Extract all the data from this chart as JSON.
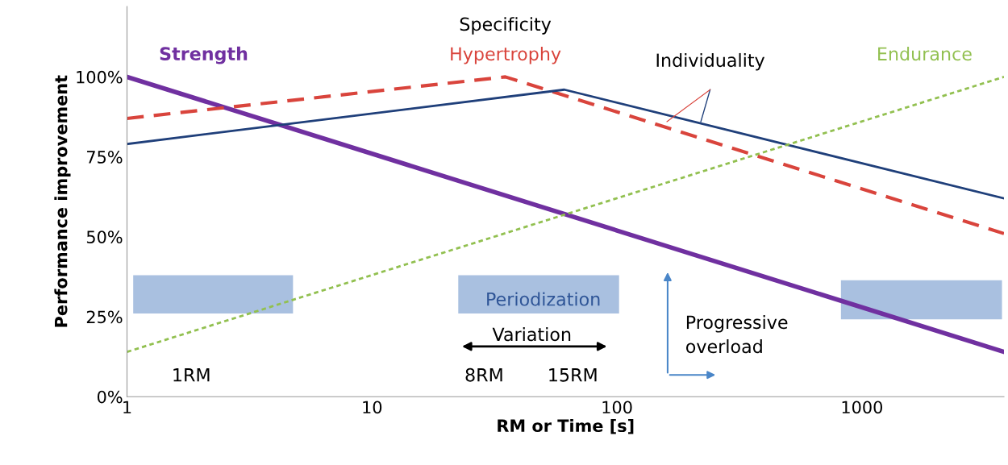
{
  "chart_data": {
    "type": "line",
    "xlabel": "RM or Time [s]",
    "ylabel": "Performance improvement",
    "log": "x",
    "xlim": [
      1,
      3800
    ],
    "xticks": [
      1,
      10,
      100,
      1000
    ],
    "ylim": [
      0,
      122
    ],
    "yticks": [
      {
        "value": 0,
        "label": "0%"
      },
      {
        "value": 25,
        "label": "25%"
      },
      {
        "value": 50,
        "label": "50%"
      },
      {
        "value": 75,
        "label": "75%"
      },
      {
        "value": 100,
        "label": "100%"
      }
    ],
    "grid": false,
    "legend": false,
    "marker": "none",
    "series": [
      {
        "name": "Strength",
        "color": "#7030a0",
        "line_style": "solid",
        "x": [
          1,
          3800
        ],
        "values": [
          100,
          14
        ]
      },
      {
        "name": "Hypertrophy",
        "color": "#d9443c",
        "line_style": "dashed",
        "x": [
          1,
          35,
          3800
        ],
        "values": [
          87,
          100,
          51
        ]
      },
      {
        "name": "Individuality",
        "color": "#1f3f7a",
        "line_style": "solid",
        "x": [
          1,
          61,
          3800
        ],
        "values": [
          79,
          96,
          62
        ]
      },
      {
        "name": "Endurance",
        "color": "#92c050",
        "line_style": "dotted",
        "x": [
          1,
          3800
        ],
        "values": [
          14,
          100
        ]
      }
    ],
    "annotations": [
      "Specificity",
      "Periodization",
      "Variation",
      "Progressive overload",
      "1RM",
      "8RM",
      "15RM"
    ]
  }
}
